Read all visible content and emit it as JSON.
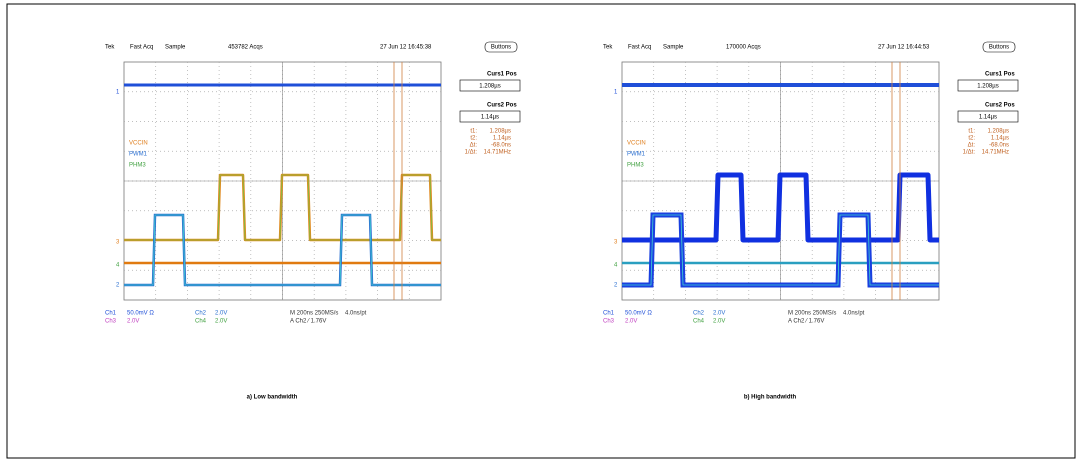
{
  "scopes": [
    {
      "header": [
        "Tek",
        "Fast Acq",
        "Sample",
        "453782 Acqs",
        "27 Jun 12 16:45:38"
      ],
      "button": "Buttons",
      "cursor_panel": {
        "curs1_title": "Curs1 Pos",
        "curs1_value": "1.208µs",
        "curs2_title": "Curs2 Pos",
        "curs2_value": "1.14µs",
        "readouts": [
          [
            "t1:",
            "1.208µs"
          ],
          [
            "t2:",
            "1.14µs"
          ],
          [
            "Δt:",
            "-68.0ns"
          ],
          [
            "1/Δt:",
            "14.71MHz"
          ]
        ]
      },
      "channel_labels": [
        "VCCIN",
        "PWM1",
        "PHM3"
      ],
      "markers": [
        "1",
        "3",
        "4",
        "2"
      ],
      "status": [
        [
          "Ch1",
          "50.0mV Ω",
          "Ch2",
          "2.0V",
          "M 200ns 250MS/s",
          "4.0ns/pt"
        ],
        [
          "Ch3",
          "2.0V",
          "Ch4",
          "2.0V",
          "A Ch2 ⁄ 1.76V"
        ]
      ],
      "caption": "a) Low bandwidth"
    },
    {
      "header": [
        "Tek",
        "Fast Acq",
        "Sample",
        "170000 Acqs",
        "27 Jun 12 16:44:53"
      ],
      "button": "Buttons",
      "cursor_panel": {
        "curs1_title": "Curs1 Pos",
        "curs1_value": "1.208µs",
        "curs2_title": "Curs2 Pos",
        "curs2_value": "1.14µs",
        "readouts": [
          [
            "t1:",
            "1.208µs"
          ],
          [
            "t2:",
            "1.14µs"
          ],
          [
            "Δt:",
            "-68.0ns"
          ],
          [
            "1/Δt:",
            "14.71MHz"
          ]
        ]
      },
      "channel_labels": [
        "VCCIN",
        "PWM1",
        "PHM3"
      ],
      "markers": [
        "1",
        "3",
        "4",
        "2"
      ],
      "status": [
        [
          "Ch1",
          "50.0mV Ω",
          "Ch2",
          "2.0V",
          "M 200ns 250MS/s",
          "4.0ns/pt"
        ],
        [
          "Ch3",
          "2.0V",
          "Ch4",
          "2.0V",
          "A Ch2 ⁄ 1.76V"
        ]
      ],
      "caption": "b) High bandwidth"
    }
  ]
}
